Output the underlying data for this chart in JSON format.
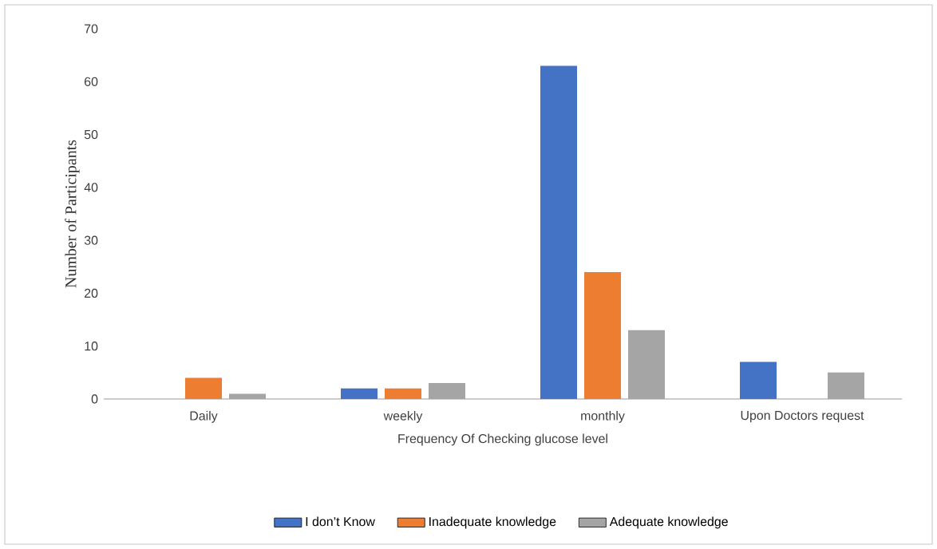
{
  "chart_data": {
    "type": "bar",
    "xlabel": "Frequency Of Checking glucose level",
    "ylabel": "Number of Participants",
    "categories": [
      "Daily",
      "weekly",
      "monthly",
      "Upon Doctors request"
    ],
    "series": [
      {
        "name": "I don’t Know",
        "color": "#4472c4",
        "values": [
          0,
          2,
          63,
          7
        ]
      },
      {
        "name": "Inadequate knowledge",
        "color": "#ed7d31",
        "values": [
          4,
          2,
          24,
          0
        ]
      },
      {
        "name": "Adequate knowledge",
        "color": "#a5a5a5",
        "values": [
          1,
          3,
          13,
          5
        ]
      }
    ],
    "ylim": [
      0,
      70
    ],
    "yticks": [
      0,
      10,
      20,
      30,
      40,
      50,
      60,
      70
    ],
    "grid": false,
    "legend": "bottom"
  }
}
